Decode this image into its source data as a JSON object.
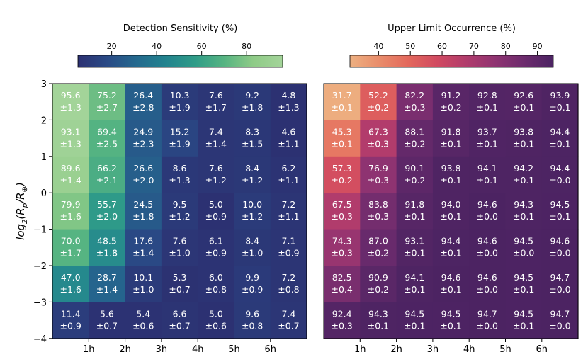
{
  "chart_data": [
    {
      "type": "heatmap",
      "colorbar_label": "Detection Sensitivity (%)",
      "colorbar_ticks": [
        "20",
        "40",
        "60",
        "80"
      ],
      "colorbar_range": [
        5,
        96
      ],
      "colormap": "crest",
      "x_tick_labels": [
        "1h",
        "2h",
        "3h",
        "4h",
        "5h",
        "6h"
      ],
      "y_tick_labels": [
        "3",
        "2",
        "1",
        "0",
        "−1",
        "−2",
        "−3",
        "−4"
      ],
      "ylabel": "log2(Rp/R⊕)",
      "values": [
        [
          95.6,
          75.2,
          26.4,
          10.3,
          7.6,
          9.2,
          4.8
        ],
        [
          93.1,
          69.4,
          24.9,
          15.2,
          7.4,
          8.3,
          4.6
        ],
        [
          89.6,
          66.2,
          26.6,
          8.6,
          7.6,
          8.4,
          6.2
        ],
        [
          79.9,
          55.7,
          24.5,
          9.5,
          5.0,
          10.0,
          7.2
        ],
        [
          70.0,
          48.5,
          17.6,
          7.6,
          6.1,
          8.4,
          7.1
        ],
        [
          47.0,
          28.7,
          10.1,
          5.3,
          6.0,
          9.9,
          7.2
        ],
        [
          11.4,
          5.6,
          5.4,
          6.6,
          5.0,
          9.6,
          7.4
        ]
      ],
      "value_labels": [
        [
          "95.6",
          "75.2",
          "26.4",
          "10.3",
          "7.6",
          "9.2",
          "4.8"
        ],
        [
          "93.1",
          "69.4",
          "24.9",
          "15.2",
          "7.4",
          "8.3",
          "4.6"
        ],
        [
          "89.6",
          "66.2",
          "26.6",
          "8.6",
          "7.6",
          "8.4",
          "6.2"
        ],
        [
          "79.9",
          "55.7",
          "24.5",
          "9.5",
          "5.0",
          "10.0",
          "7.2"
        ],
        [
          "70.0",
          "48.5",
          "17.6",
          "7.6",
          "6.1",
          "8.4",
          "7.1"
        ],
        [
          "47.0",
          "28.7",
          "10.1",
          "5.3",
          "6.0",
          "9.9",
          "7.2"
        ],
        [
          "11.4",
          "5.6",
          "5.4",
          "6.6",
          "5.0",
          "9.6",
          "7.4"
        ]
      ],
      "errors": [
        [
          "±1.3",
          "±2.7",
          "±2.8",
          "±1.9",
          "±1.7",
          "±1.8",
          "±1.3"
        ],
        [
          "±1.3",
          "±2.5",
          "±2.3",
          "±1.9",
          "±1.4",
          "±1.5",
          "±1.1"
        ],
        [
          "±1.4",
          "±2.1",
          "±2.0",
          "±1.3",
          "±1.2",
          "±1.2",
          "±1.1"
        ],
        [
          "±1.6",
          "±2.0",
          "±1.8",
          "±1.2",
          "±0.9",
          "±1.2",
          "±1.1"
        ],
        [
          "±1.7",
          "±1.8",
          "±1.4",
          "±1.0",
          "±0.9",
          "±1.0",
          "±0.9"
        ],
        [
          "±1.6",
          "±1.4",
          "±1.0",
          "±0.7",
          "±0.8",
          "±0.9",
          "±0.8"
        ],
        [
          "±0.9",
          "±0.7",
          "±0.6",
          "±0.7",
          "±0.6",
          "±0.8",
          "±0.7"
        ]
      ]
    },
    {
      "type": "heatmap",
      "colorbar_label": "Upper Limit Occurrence (%)",
      "colorbar_ticks": [
        "40",
        "50",
        "60",
        "70",
        "80",
        "90"
      ],
      "colorbar_range": [
        31,
        95
      ],
      "colormap": "flare",
      "x_tick_labels": [
        "1h",
        "2h",
        "3h",
        "4h",
        "5h",
        "6h"
      ],
      "values": [
        [
          31.7,
          52.2,
          82.2,
          91.2,
          92.8,
          92.6,
          93.9
        ],
        [
          45.3,
          67.3,
          88.1,
          91.8,
          93.7,
          93.8,
          94.4
        ],
        [
          57.3,
          76.9,
          90.1,
          93.8,
          94.1,
          94.2,
          94.4
        ],
        [
          67.5,
          83.8,
          91.8,
          94.0,
          94.6,
          94.3,
          94.5
        ],
        [
          74.3,
          87.0,
          93.1,
          94.4,
          94.6,
          94.5,
          94.6
        ],
        [
          82.5,
          90.9,
          94.1,
          94.6,
          94.6,
          94.5,
          94.7
        ],
        [
          92.4,
          94.3,
          94.5,
          94.5,
          94.7,
          94.5,
          94.7
        ]
      ],
      "value_labels": [
        [
          "31.7",
          "52.2",
          "82.2",
          "91.2",
          "92.8",
          "92.6",
          "93.9"
        ],
        [
          "45.3",
          "67.3",
          "88.1",
          "91.8",
          "93.7",
          "93.8",
          "94.4"
        ],
        [
          "57.3",
          "76.9",
          "90.1",
          "93.8",
          "94.1",
          "94.2",
          "94.4"
        ],
        [
          "67.5",
          "83.8",
          "91.8",
          "94.0",
          "94.6",
          "94.3",
          "94.5"
        ],
        [
          "74.3",
          "87.0",
          "93.1",
          "94.4",
          "94.6",
          "94.5",
          "94.6"
        ],
        [
          "82.5",
          "90.9",
          "94.1",
          "94.6",
          "94.6",
          "94.5",
          "94.7"
        ],
        [
          "92.4",
          "94.3",
          "94.5",
          "94.5",
          "94.7",
          "94.5",
          "94.7"
        ]
      ],
      "errors": [
        [
          "±0.1",
          "±0.2",
          "±0.3",
          "±0.2",
          "±0.1",
          "±0.1",
          "±0.1"
        ],
        [
          "±0.1",
          "±0.3",
          "±0.2",
          "±0.1",
          "±0.1",
          "±0.1",
          "±0.1"
        ],
        [
          "±0.2",
          "±0.3",
          "±0.2",
          "±0.1",
          "±0.1",
          "±0.1",
          "±0.0"
        ],
        [
          "±0.3",
          "±0.3",
          "±0.1",
          "±0.1",
          "±0.0",
          "±0.1",
          "±0.1"
        ],
        [
          "±0.3",
          "±0.2",
          "±0.1",
          "±0.1",
          "±0.0",
          "±0.0",
          "±0.0"
        ],
        [
          "±0.4",
          "±0.2",
          "±0.1",
          "±0.1",
          "±0.0",
          "±0.1",
          "±0.0"
        ],
        [
          "±0.3",
          "±0.1",
          "±0.1",
          "±0.1",
          "±0.0",
          "±0.1",
          "±0.0"
        ]
      ]
    }
  ],
  "colormaps": {
    "crest": [
      "#2c3172",
      "#2a4a86",
      "#24698e",
      "#22838e",
      "#2f9c88",
      "#56b482",
      "#8fcb87",
      "#a4d49a"
    ],
    "flare": [
      "#edb081",
      "#e98d6b",
      "#e3685c",
      "#d14a61",
      "#b13c6c",
      "#8f3371",
      "#6c2b6d",
      "#4b2362"
    ]
  }
}
